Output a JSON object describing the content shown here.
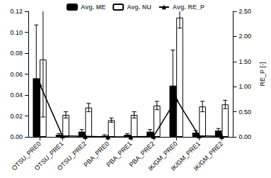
{
  "chart_data": {
    "type": "bar",
    "categories": [
      "OTSU_PRE0",
      "OTSU_PRE1",
      "OTSU_PRE2",
      "PBA_PRE0",
      "PBA_PRE1",
      "PBA_PRE2",
      "IK/GM_PRE0",
      "IK/GM_PRE1",
      "IK/GM_PRE2"
    ],
    "series": [
      {
        "name": "Avg. ME",
        "type": "bar",
        "color": "#000000",
        "values": [
          0.056,
          0.002,
          0.005,
          0.001,
          0.002,
          0.005,
          0.049,
          0.004,
          0.006
        ],
        "errors": [
          0.051,
          0.001,
          0.002,
          0.001,
          0.001,
          0.002,
          0.034,
          0.002,
          0.002
        ]
      },
      {
        "name": "Avg. NU",
        "type": "bar",
        "color": "#ffffff",
        "values": [
          0.074,
          0.021,
          0.028,
          0.016,
          0.021,
          0.03,
          0.114,
          0.029,
          0.031
        ],
        "errors": [
          0.055,
          0.003,
          0.004,
          0.002,
          0.003,
          0.004,
          0.01,
          0.005,
          0.004
        ]
      },
      {
        "name": "Avg. RE_P",
        "type": "line",
        "axis": "y2",
        "color": "#000000",
        "marker": "triangle",
        "values": [
          1.05,
          0.02,
          0.01,
          0.0,
          0.0,
          0.01,
          0.75,
          0.02,
          0.01
        ]
      }
    ],
    "ylim": [
      0,
      0.12
    ],
    "yticks": [
      {
        "value": 0,
        "label": "0.00"
      },
      {
        "value": 0.02,
        "label": "0.02"
      },
      {
        "value": 0.04,
        "label": "0.04"
      },
      {
        "value": 0.06,
        "label": "0.06"
      },
      {
        "value": 0.08,
        "label": "0.08"
      },
      {
        "value": 0.1,
        "label": "0.10"
      },
      {
        "value": 0.12,
        "label": "0.12"
      }
    ],
    "y2lim": [
      0,
      2.5
    ],
    "y2ticks": [
      {
        "value": 0,
        "label": "0.00"
      },
      {
        "value": 0.5,
        "label": "0.50"
      },
      {
        "value": 1,
        "label": "1.00"
      },
      {
        "value": 1.5,
        "label": "1.50"
      },
      {
        "value": 2,
        "label": "2.00"
      },
      {
        "value": 2.5,
        "label": "2.50"
      }
    ],
    "y2label": "RE_P [-]",
    "legend": "top",
    "grid": false
  }
}
